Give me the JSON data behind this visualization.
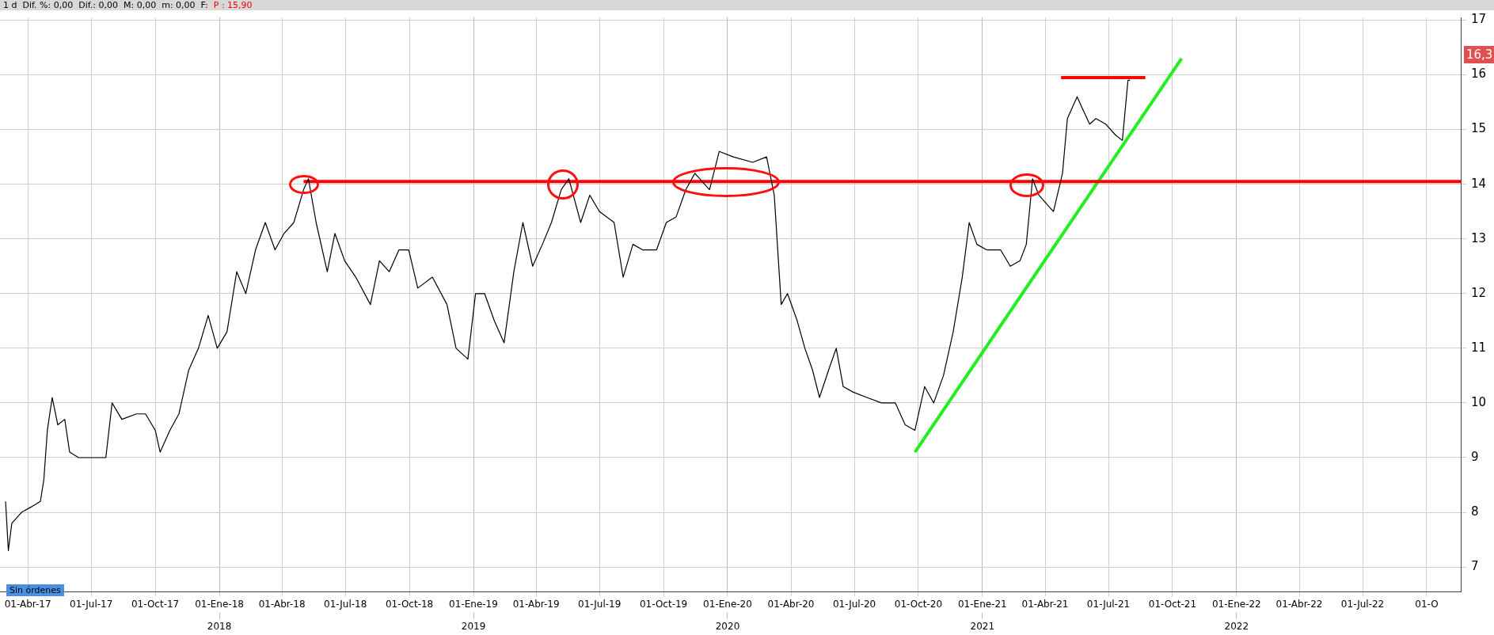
{
  "chart_data": {
    "type": "line",
    "title": "1 d  Dif. %: 0,00  Dif.: 0,00  M: 0,00  m: 0,00  F:",
    "subtitle": "P : 15,90",
    "xlim": [
      "2017-02-20",
      "2022-11-20"
    ],
    "xticks": [
      {
        "value": "2017-04-01",
        "label": "01-Abr-17"
      },
      {
        "value": "2017-07-01",
        "label": "01-Jul-17"
      },
      {
        "value": "2017-10-01",
        "label": "01-Oct-17"
      },
      {
        "value": "2018-01-01",
        "label": "01-Ene-18"
      },
      {
        "value": "2018-04-01",
        "label": "01-Abr-18"
      },
      {
        "value": "2018-07-01",
        "label": "01-Jul-18"
      },
      {
        "value": "2018-10-01",
        "label": "01-Oct-18"
      },
      {
        "value": "2019-01-01",
        "label": "01-Ene-19"
      },
      {
        "value": "2019-04-01",
        "label": "01-Abr-19"
      },
      {
        "value": "2019-07-01",
        "label": "01-Jul-19"
      },
      {
        "value": "2019-10-01",
        "label": "01-Oct-19"
      },
      {
        "value": "2020-01-01",
        "label": "01-Ene-20"
      },
      {
        "value": "2020-04-01",
        "label": "01-Abr-20"
      },
      {
        "value": "2020-07-01",
        "label": "01-Jul-20"
      },
      {
        "value": "2020-10-01",
        "label": "01-Oct-20"
      },
      {
        "value": "2021-01-01",
        "label": "01-Ene-21"
      },
      {
        "value": "2021-04-01",
        "label": "01-Abr-21"
      },
      {
        "value": "2021-07-01",
        "label": "01-Jul-21"
      },
      {
        "value": "2021-10-01",
        "label": "01-Oct-21"
      },
      {
        "value": "2022-01-01",
        "label": "01-Ene-22"
      },
      {
        "value": "2022-04-01",
        "label": "01-Abr-22"
      },
      {
        "value": "2022-07-01",
        "label": "01-Jul-22"
      },
      {
        "value": "2022-10-01",
        "label": "01-O"
      }
    ],
    "x2lim": [
      "2017-02-20",
      "2022-11-20"
    ],
    "x2ticks": [
      {
        "value": "2018-01-01",
        "label": "2018"
      },
      {
        "value": "2019-01-01",
        "label": "2019"
      },
      {
        "value": "2020-01-01",
        "label": "2020"
      },
      {
        "value": "2021-01-01",
        "label": "2021"
      },
      {
        "value": "2022-01-01",
        "label": "2022"
      }
    ],
    "ylim": [
      6.55,
      17.05
    ],
    "yticks": [
      7,
      8,
      9,
      10,
      11,
      12,
      13,
      14,
      15,
      16,
      17
    ],
    "grid": true,
    "legend": false,
    "marker": "none",
    "line_style": "solid",
    "series": [
      {
        "color": "#000000",
        "x": [
          "2017-02-28",
          "2017-03-04",
          "2017-03-09",
          "2017-03-23",
          "2017-04-06",
          "2017-04-19",
          "2017-04-24",
          "2017-04-29",
          "2017-05-06",
          "2017-05-14",
          "2017-05-24",
          "2017-05-31",
          "2017-06-13",
          "2017-07-04",
          "2017-07-22",
          "2017-07-31",
          "2017-08-14",
          "2017-09-04",
          "2017-09-17",
          "2017-10-01",
          "2017-10-08",
          "2017-10-22",
          "2017-11-04",
          "2017-11-18",
          "2017-12-02",
          "2017-12-16",
          "2017-12-29",
          "2018-01-12",
          "2018-01-26",
          "2018-02-08",
          "2018-02-22",
          "2018-03-08",
          "2018-03-22",
          "2018-04-04",
          "2018-04-18",
          "2018-05-02",
          "2018-05-09",
          "2018-05-20",
          "2018-06-05",
          "2018-06-16",
          "2018-06-30",
          "2018-07-16",
          "2018-08-06",
          "2018-08-19",
          "2018-09-02",
          "2018-09-16",
          "2018-09-30",
          "2018-10-13",
          "2018-11-03",
          "2018-11-24",
          "2018-12-07",
          "2018-12-24",
          "2019-01-04",
          "2019-01-17",
          "2019-01-31",
          "2019-02-14",
          "2019-02-28",
          "2019-03-13",
          "2019-03-27",
          "2019-04-10",
          "2019-04-23",
          "2019-05-07",
          "2019-05-18",
          "2019-06-04",
          "2019-06-17",
          "2019-07-01",
          "2019-07-22",
          "2019-08-04",
          "2019-08-18",
          "2019-09-01",
          "2019-09-21",
          "2019-10-05",
          "2019-10-19",
          "2019-11-02",
          "2019-11-15",
          "2019-12-06",
          "2019-12-20",
          "2020-01-09",
          "2020-02-06",
          "2020-02-26",
          "2020-03-08",
          "2020-03-18",
          "2020-03-27",
          "2020-04-10",
          "2020-04-21",
          "2020-05-02",
          "2020-05-12",
          "2020-05-25",
          "2020-06-05",
          "2020-06-15",
          "2020-06-29",
          "2020-07-19",
          "2020-08-09",
          "2020-08-29",
          "2020-09-12",
          "2020-09-26",
          "2020-10-10",
          "2020-10-23",
          "2020-11-06",
          "2020-11-20",
          "2020-12-03",
          "2020-12-13",
          "2020-12-24",
          "2021-01-07",
          "2021-01-27",
          "2021-02-10",
          "2021-02-24",
          "2021-03-05",
          "2021-03-14",
          "2021-03-23",
          "2021-04-06",
          "2021-04-13",
          "2021-04-26",
          "2021-05-03",
          "2021-05-17",
          "2021-05-24",
          "2021-06-04",
          "2021-06-13",
          "2021-06-27",
          "2021-07-11",
          "2021-07-21",
          "2021-07-29",
          "2021-08-01"
        ],
        "values": [
          8.2,
          7.3,
          7.8,
          8.0,
          8.1,
          8.2,
          8.6,
          9.5,
          10.1,
          9.6,
          9.7,
          9.1,
          9.0,
          9.0,
          9.0,
          10.0,
          9.7,
          9.8,
          9.8,
          9.5,
          9.1,
          9.5,
          9.8,
          10.6,
          11.0,
          11.6,
          11.0,
          11.3,
          12.4,
          12.0,
          12.8,
          13.3,
          12.8,
          13.1,
          13.3,
          13.9,
          14.1,
          13.3,
          12.4,
          13.1,
          12.6,
          12.3,
          11.8,
          12.6,
          12.4,
          12.8,
          12.8,
          12.1,
          12.3,
          11.8,
          11.0,
          10.8,
          12.0,
          12.0,
          11.5,
          11.1,
          12.4,
          13.3,
          12.5,
          12.9,
          13.3,
          13.9,
          14.1,
          13.3,
          13.8,
          13.5,
          13.3,
          12.3,
          12.9,
          12.8,
          12.8,
          13.3,
          13.4,
          13.9,
          14.2,
          13.9,
          14.6,
          14.5,
          14.4,
          14.5,
          13.8,
          11.8,
          12.0,
          11.5,
          11.0,
          10.6,
          10.1,
          10.6,
          11.0,
          10.3,
          10.2,
          10.1,
          10.0,
          10.0,
          9.6,
          9.5,
          10.3,
          10.0,
          10.5,
          11.3,
          12.3,
          13.3,
          12.9,
          12.8,
          12.8,
          12.5,
          12.6,
          12.9,
          14.1,
          13.8,
          13.6,
          13.5,
          14.2,
          15.2,
          15.6,
          15.4,
          15.1,
          15.2,
          15.1,
          14.9,
          14.8,
          15.9,
          15.9
        ]
      },
      {
        "color": "#ff0000",
        "x": [
          "2018-05-02",
          "2022-11-20"
        ],
        "values": [
          14.05,
          14.05
        ]
      },
      {
        "color": "#ff0000",
        "x": [
          "2021-04-24",
          "2021-08-23"
        ],
        "values": [
          15.95,
          15.95
        ]
      },
      {
        "color": "#22ee22",
        "x": [
          "2020-09-26",
          "2021-10-14"
        ],
        "values": [
          9.1,
          16.3
        ]
      }
    ],
    "annotations": [
      "16,3",
      "Sin órdenes"
    ]
  }
}
